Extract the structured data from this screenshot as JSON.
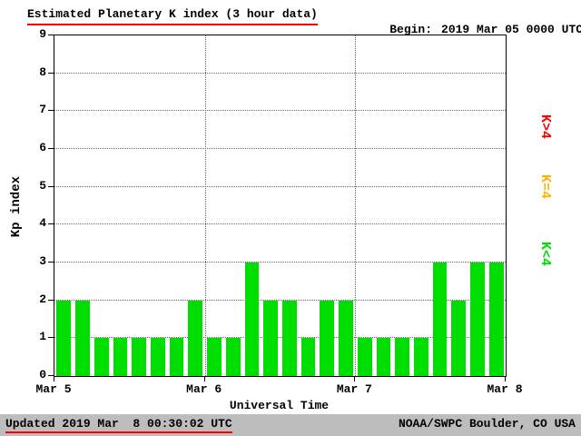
{
  "title": "Estimated Planetary K index (3 hour data)",
  "begin": {
    "label": "Begin:",
    "value": "2019 Mar 05 0000 UTC"
  },
  "axes": {
    "ylabel": "Kp index",
    "xlabel": "Universal Time"
  },
  "legend": [
    {
      "id": "high",
      "label": "K>4",
      "color": "#ff0000"
    },
    {
      "id": "mid",
      "label": "K=4",
      "color": "#ffb400"
    },
    {
      "id": "low",
      "label": "K<4",
      "color": "#00dd00"
    }
  ],
  "footer": {
    "updated": "Updated 2019 Mar  8 00:30:02 UTC",
    "source": "NOAA/SWPC Boulder, CO USA"
  },
  "chart_data": {
    "type": "bar",
    "title": "Estimated Planetary K index (3 hour data)",
    "xlabel": "Universal Time",
    "ylabel": "Kp index",
    "ylim": [
      0,
      9
    ],
    "y_ticks": [
      0,
      1,
      2,
      3,
      4,
      5,
      6,
      7,
      8,
      9
    ],
    "x_ticks": [
      "Mar 5",
      "Mar 6",
      "Mar 7",
      "Mar 8"
    ],
    "begin": "2019 Mar 05 0000 UTC",
    "interval_hours": 3,
    "values": [
      2,
      2,
      1,
      1,
      1,
      1,
      1,
      2,
      1,
      1,
      3,
      2,
      2,
      1,
      2,
      2,
      1,
      1,
      1,
      1,
      3,
      2,
      3,
      3
    ],
    "colors": {
      "low": "#00dd00",
      "mid": "#ffb400",
      "high": "#ff0000"
    },
    "color_rule": "low: K<4, mid: K=4, high: K>4",
    "grid": "dotted",
    "legend_position": "right"
  }
}
